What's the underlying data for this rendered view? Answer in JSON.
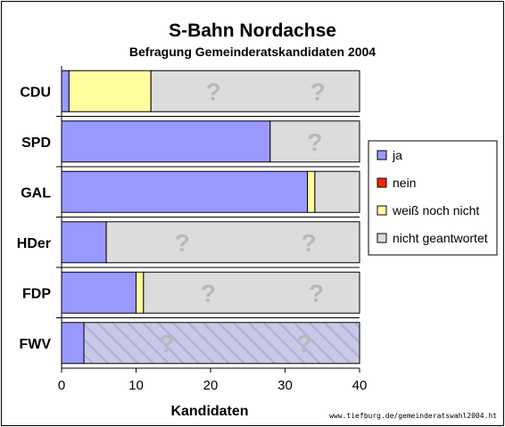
{
  "chart_data": {
    "type": "bar",
    "orientation": "horizontal",
    "stacked": true,
    "title": "S-Bahn Nordachse",
    "subtitle": "Befragung Gemeinderatskandidaten 2004",
    "xlabel": "Kandidaten",
    "ylabel": "",
    "xlim": [
      0,
      40
    ],
    "xticks": [
      "0",
      "10",
      "20",
      "30",
      "40"
    ],
    "categories": [
      "CDU",
      "SPD",
      "GAL",
      "HDer",
      "FDP",
      "FWV"
    ],
    "series": [
      {
        "name": "ja",
        "color": "#9999ff",
        "values": [
          1,
          28,
          33,
          6,
          10,
          3
        ]
      },
      {
        "name": "nein",
        "color": "#ff2200",
        "values": [
          0,
          0,
          0,
          0,
          0,
          0
        ]
      },
      {
        "name": "weiß noch nicht",
        "color": "#ffffa0",
        "values": [
          11,
          0,
          1,
          0,
          1,
          0
        ]
      },
      {
        "name": "nicht geantwortet",
        "color": "#dcdcdc",
        "values": [
          28,
          12,
          6,
          34,
          29,
          37
        ]
      }
    ],
    "question_marks": [
      2,
      1,
      0,
      2,
      2,
      2
    ],
    "hatched_category": "FWV",
    "legend_position": "right",
    "grid": false,
    "source_note": "www.tiefburg.de/gemeinderatswahl2004.ht"
  }
}
